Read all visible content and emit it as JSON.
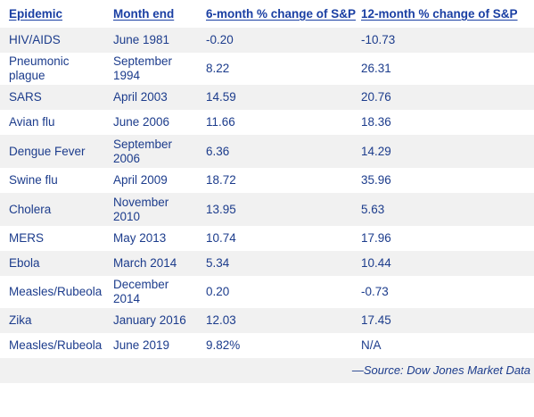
{
  "table": {
    "headers": [
      "Epidemic",
      "Month end",
      "6-month % change of S&P",
      "12-month % change of S&P"
    ],
    "rows": [
      {
        "epidemic": "HIV/AIDS",
        "month_end": "June 1981",
        "six_month": "-0.20",
        "twelve_month": "-10.73"
      },
      {
        "epidemic": "Pneumonic plague",
        "month_end": "September 1994",
        "six_month": "8.22",
        "twelve_month": "26.31"
      },
      {
        "epidemic": "SARS",
        "month_end": "April 2003",
        "six_month": "14.59",
        "twelve_month": "20.76"
      },
      {
        "epidemic": "Avian flu",
        "month_end": "June 2006",
        "six_month": "11.66",
        "twelve_month": "18.36"
      },
      {
        "epidemic": "Dengue Fever",
        "month_end": "September 2006",
        "six_month": "6.36",
        "twelve_month": "14.29"
      },
      {
        "epidemic": "Swine flu",
        "month_end": "April 2009",
        "six_month": "18.72",
        "twelve_month": "35.96"
      },
      {
        "epidemic": "Cholera",
        "month_end": "November 2010",
        "six_month": "13.95",
        "twelve_month": "5.63"
      },
      {
        "epidemic": "MERS",
        "month_end": "May 2013",
        "six_month": "10.74",
        "twelve_month": "17.96"
      },
      {
        "epidemic": "Ebola",
        "month_end": "March 2014",
        "six_month": "5.34",
        "twelve_month": "10.44"
      },
      {
        "epidemic": "Measles/Rubeola",
        "month_end": "December 2014",
        "six_month": "0.20",
        "twelve_month": "-0.73"
      },
      {
        "epidemic": "Zika",
        "month_end": "January 2016",
        "six_month": "12.03",
        "twelve_month": "17.45"
      },
      {
        "epidemic": "Measles/Rubeola",
        "month_end": "June 2019",
        "six_month": "9.82%",
        "twelve_month": "N/A"
      }
    ],
    "source": "—Source: Dow Jones Market Data"
  }
}
